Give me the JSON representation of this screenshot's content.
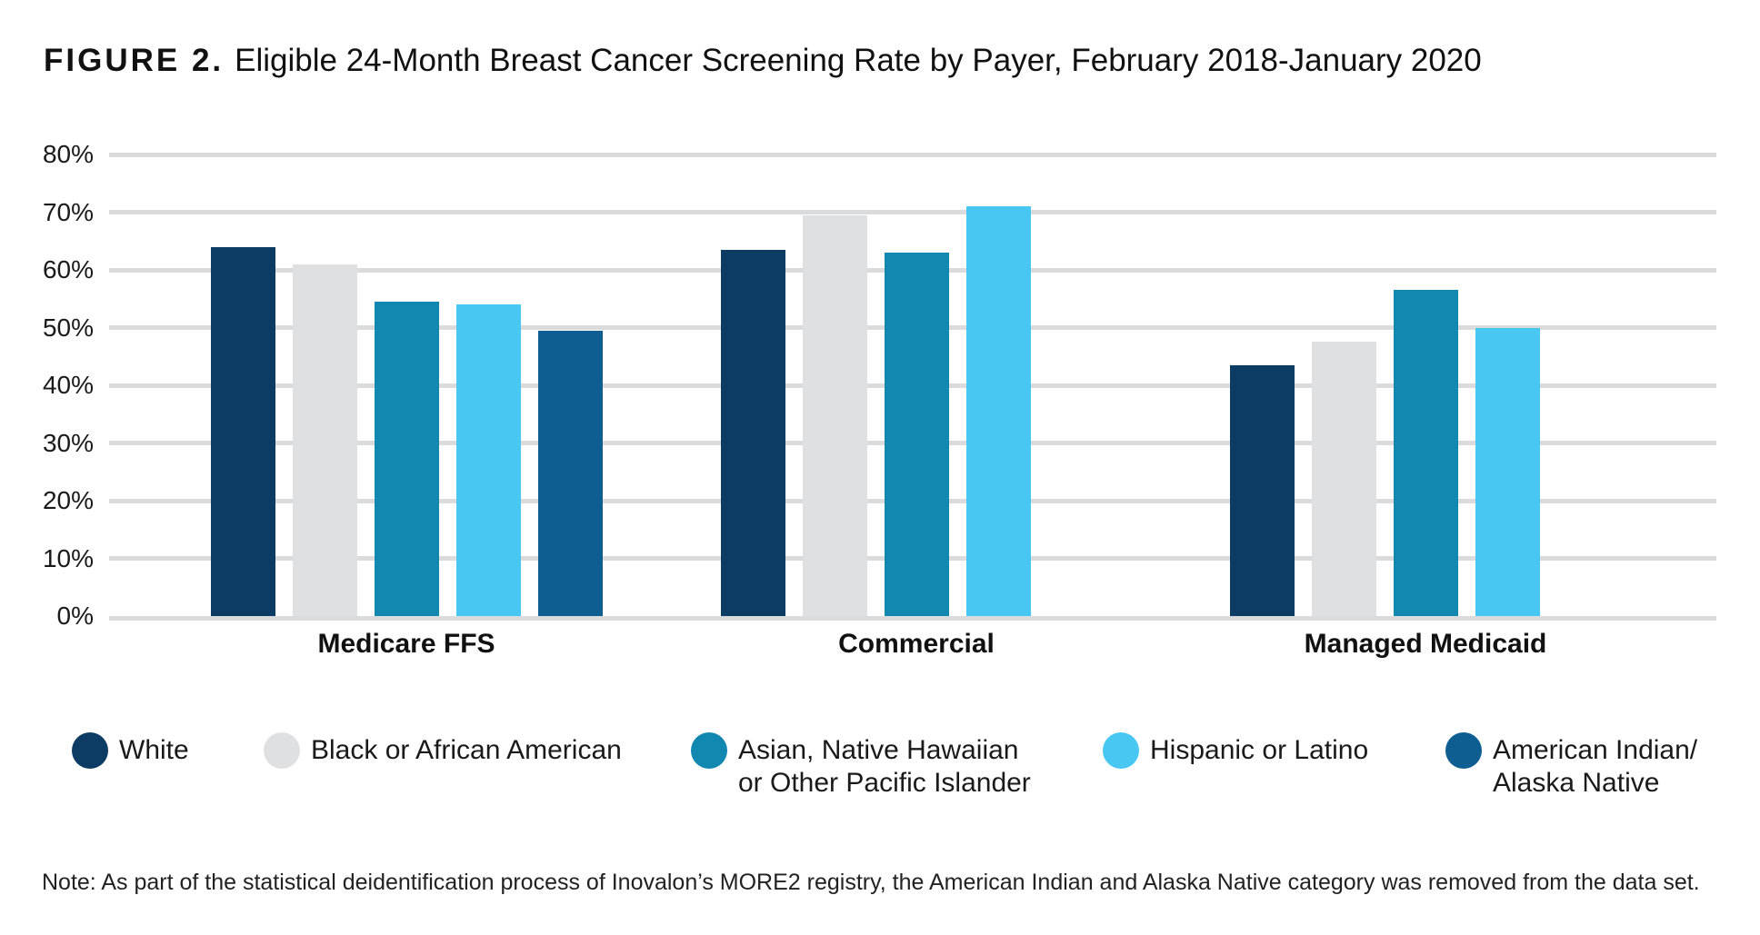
{
  "title": {
    "label": "FIGURE 2.",
    "text": "Eligible 24-Month Breast Cancer Screening Rate by Payer, February 2018-January 2020"
  },
  "chart_data": {
    "type": "bar",
    "categories": [
      "Medicare FFS",
      "Commercial",
      "Managed Medicaid"
    ],
    "series": [
      {
        "name": "White",
        "color": "#0c3c64",
        "values": [
          64,
          63.5,
          43.5
        ]
      },
      {
        "name": "Black or African American",
        "color": "#dee0e2",
        "values": [
          61,
          69.5,
          47.5
        ]
      },
      {
        "name": "Asian, Native Hawaiian or Other Pacific Islander",
        "color": "#1287af",
        "values": [
          54.5,
          63,
          56.5
        ]
      },
      {
        "name": "Hispanic or Latino",
        "color": "#47c7f2",
        "values": [
          54,
          71,
          50
        ]
      },
      {
        "name": "American Indian/Alaska Native",
        "color": "#0e5e92",
        "values": [
          49.5,
          null,
          null
        ]
      }
    ],
    "xlabel": "",
    "ylabel": "",
    "ylim": [
      0,
      80
    ],
    "yticks": [
      "0%",
      "10%",
      "20%",
      "30%",
      "40%",
      "50%",
      "60%",
      "70%",
      "80%"
    ],
    "grid": true,
    "gridline_color": "#d9dbdd",
    "legend_position": "bottom"
  },
  "legend": {
    "items": [
      {
        "line1": "White",
        "line2": ""
      },
      {
        "line1": "Black or African American",
        "line2": ""
      },
      {
        "line1": "Asian, Native Hawaiian",
        "line2": "or Other Pacific Islander"
      },
      {
        "line1": "Hispanic or Latino",
        "line2": ""
      },
      {
        "line1": "American Indian/",
        "line2": "Alaska Native"
      }
    ]
  },
  "note": "Note: As part of the statistical deidentification process of Inovalon’s MORE2 registry, the American Indian and Alaska Native category was removed from the data set."
}
